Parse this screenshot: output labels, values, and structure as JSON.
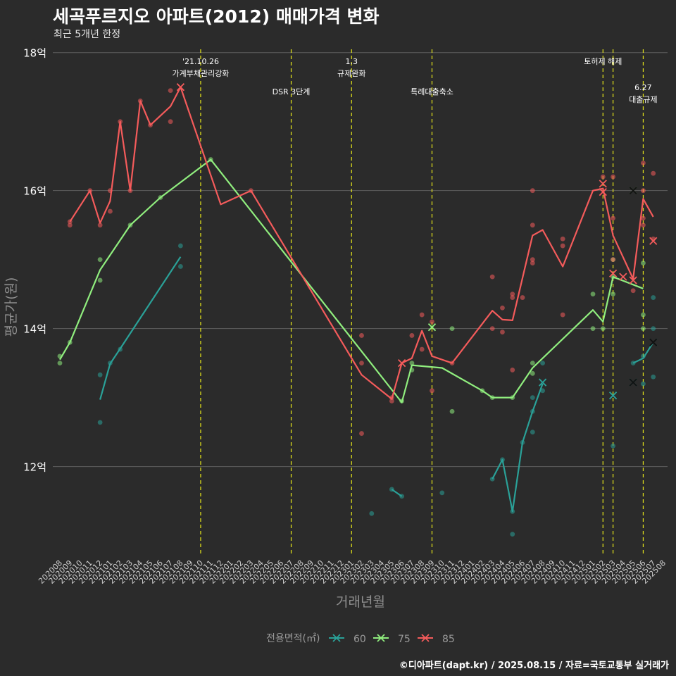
{
  "title": "세곡푸르지오 아파트(2012) 매매가격 변화",
  "subtitle": "최근 5개년 한정",
  "caption": "©디아파트(dapt.kr) / 2025.08.15 / 자료=국토교통부 실거래가",
  "colors": {
    "background": "#2b2b2b",
    "series_60": "#2aa198",
    "series_75": "#90ee7e",
    "series_85": "#f45b5b",
    "event_line": "#e8e81a"
  },
  "chart_data": {
    "type": "line",
    "xlabel": "거래년월",
    "ylabel": "평균가(원)",
    "ylim": [
      10.7,
      18.15
    ],
    "yticks": [
      {
        "value": 12,
        "label": "12억"
      },
      {
        "value": 14,
        "label": "14억"
      },
      {
        "value": 16,
        "label": "16억"
      },
      {
        "value": 18,
        "label": "18억"
      }
    ],
    "categories": [
      "202008",
      "202009",
      "202010",
      "202011",
      "202012",
      "202101",
      "202102",
      "202103",
      "202104",
      "202105",
      "202106",
      "202107",
      "202108",
      "202109",
      "202110",
      "202111",
      "202112",
      "202201",
      "202202",
      "202203",
      "202204",
      "202205",
      "202206",
      "202207",
      "202208",
      "202209",
      "202210",
      "202211",
      "202212",
      "202301",
      "202302",
      "202303",
      "202304",
      "202305",
      "202306",
      "202307",
      "202308",
      "202309",
      "202310",
      "202311",
      "202312",
      "202401",
      "202402",
      "202403",
      "202404",
      "202405",
      "202406",
      "202407",
      "202408",
      "202409",
      "202410",
      "202411",
      "202412",
      "202501",
      "202502",
      "202503",
      "202504",
      "202505",
      "202506",
      "202507",
      "202508"
    ],
    "legend": {
      "title": "전용면적(㎡)",
      "position": "bottom"
    },
    "grid": true,
    "series": [
      {
        "name": "60",
        "color": "#2aa198",
        "line": [
          {
            "x": "202012",
            "y": 12.97
          },
          {
            "x": "202101",
            "y": 13.49
          },
          {
            "x": "202102",
            "y": 13.71
          },
          {
            "x": "202108",
            "y": 15.04
          }
        ],
        "line2": [
          {
            "x": "202305",
            "y": 11.67
          },
          {
            "x": "202306",
            "y": 11.57
          }
        ],
        "line3": [
          {
            "x": "202403",
            "y": 11.82
          },
          {
            "x": "202404",
            "y": 12.1
          },
          {
            "x": "202405",
            "y": 11.35
          },
          {
            "x": "202406",
            "y": 12.35
          },
          {
            "x": "202407",
            "y": 12.8
          },
          {
            "x": "202408",
            "y": 13.2
          }
        ],
        "line4": [
          {
            "x": "202505",
            "y": 13.5
          },
          {
            "x": "202506",
            "y": 13.57
          },
          {
            "x": "202507",
            "y": 13.8
          }
        ],
        "points": [
          {
            "x": "202012",
            "y": 13.33
          },
          {
            "x": "202012",
            "y": 12.64
          },
          {
            "x": "202101",
            "y": 13.5
          },
          {
            "x": "202102",
            "y": 13.7
          },
          {
            "x": "202108",
            "y": 15.2
          },
          {
            "x": "202108",
            "y": 14.9
          },
          {
            "x": "202303",
            "y": 11.32
          },
          {
            "x": "202305",
            "y": 11.67
          },
          {
            "x": "202306",
            "y": 11.57
          },
          {
            "x": "202310",
            "y": 11.62
          },
          {
            "x": "202403",
            "y": 11.82
          },
          {
            "x": "202404",
            "y": 12.1
          },
          {
            "x": "202405",
            "y": 11.35
          },
          {
            "x": "202405",
            "y": 11.02
          },
          {
            "x": "202406",
            "y": 12.35
          },
          {
            "x": "202407",
            "y": 12.8
          },
          {
            "x": "202407",
            "y": 13.0
          },
          {
            "x": "202407",
            "y": 12.5
          },
          {
            "x": "202408",
            "y": 13.5
          },
          {
            "x": "202408",
            "y": 13.1
          },
          {
            "x": "202503",
            "y": 12.3
          },
          {
            "x": "202505",
            "y": 13.5
          },
          {
            "x": "202506",
            "y": 13.2
          },
          {
            "x": "202506",
            "y": 13.6
          },
          {
            "x": "202507",
            "y": 14.45
          },
          {
            "x": "202507",
            "y": 14.0
          },
          {
            "x": "202507",
            "y": 13.3
          }
        ],
        "markers": [
          {
            "x": "202408",
            "y": 13.22
          },
          {
            "x": "202503",
            "y": 13.03
          },
          {
            "x": "202505",
            "y": 13.22
          },
          {
            "x": "202507",
            "y": 13.8
          }
        ]
      },
      {
        "name": "75",
        "color": "#90ee7e",
        "line": [
          {
            "x": "202008",
            "y": 13.55
          },
          {
            "x": "202009",
            "y": 13.8
          },
          {
            "x": "202012",
            "y": 14.85
          },
          {
            "x": "202103",
            "y": 15.5
          },
          {
            "x": "202106",
            "y": 15.9
          },
          {
            "x": "202111",
            "y": 16.45
          },
          {
            "x": "202306",
            "y": 12.93
          },
          {
            "x": "202307",
            "y": 13.47
          },
          {
            "x": "202310",
            "y": 13.43
          },
          {
            "x": "202402",
            "y": 13.1
          },
          {
            "x": "202403",
            "y": 13.0
          },
          {
            "x": "202405",
            "y": 13.0
          },
          {
            "x": "202407",
            "y": 13.43
          },
          {
            "x": "202501",
            "y": 14.27
          },
          {
            "x": "202502",
            "y": 14.1
          },
          {
            "x": "202503",
            "y": 14.75
          },
          {
            "x": "202506",
            "y": 14.58
          }
        ],
        "points": [
          {
            "x": "202008",
            "y": 13.6
          },
          {
            "x": "202008",
            "y": 13.5
          },
          {
            "x": "202009",
            "y": 13.8
          },
          {
            "x": "202012",
            "y": 15.0
          },
          {
            "x": "202012",
            "y": 14.7
          },
          {
            "x": "202103",
            "y": 15.5
          },
          {
            "x": "202106",
            "y": 15.9
          },
          {
            "x": "202111",
            "y": 16.45
          },
          {
            "x": "202306",
            "y": 12.95
          },
          {
            "x": "202307",
            "y": 13.5
          },
          {
            "x": "202307",
            "y": 13.4
          },
          {
            "x": "202311",
            "y": 14.0
          },
          {
            "x": "202311",
            "y": 12.8
          },
          {
            "x": "202402",
            "y": 13.1
          },
          {
            "x": "202403",
            "y": 13.0
          },
          {
            "x": "202405",
            "y": 13.0
          },
          {
            "x": "202407",
            "y": 13.5
          },
          {
            "x": "202407",
            "y": 13.35
          },
          {
            "x": "202501",
            "y": 14.5
          },
          {
            "x": "202501",
            "y": 14.0
          },
          {
            "x": "202502",
            "y": 14.0
          },
          {
            "x": "202503",
            "y": 14.75
          },
          {
            "x": "202503",
            "y": 14.5
          },
          {
            "x": "202503",
            "y": 15.0
          },
          {
            "x": "202506",
            "y": 14.95
          },
          {
            "x": "202506",
            "y": 14.2
          },
          {
            "x": "202506",
            "y": 14.0
          }
        ],
        "markers": [
          {
            "x": "202309",
            "y": 14.02
          },
          {
            "x": "202505",
            "y": 16.0
          }
        ]
      },
      {
        "name": "85",
        "color": "#f45b5b",
        "line": [
          {
            "x": "202009",
            "y": 15.55
          },
          {
            "x": "202011",
            "y": 16.0
          },
          {
            "x": "202012",
            "y": 15.53
          },
          {
            "x": "202101",
            "y": 15.85
          },
          {
            "x": "202102",
            "y": 17.0
          },
          {
            "x": "202103",
            "y": 16.0
          },
          {
            "x": "202104",
            "y": 17.3
          },
          {
            "x": "202105",
            "y": 16.95
          },
          {
            "x": "202107",
            "y": 17.22
          },
          {
            "x": "202108",
            "y": 17.5
          },
          {
            "x": "202112",
            "y": 15.8
          },
          {
            "x": "202203",
            "y": 16.0
          },
          {
            "x": "202302",
            "y": 13.33
          },
          {
            "x": "202305",
            "y": 12.98
          },
          {
            "x": "202306",
            "y": 13.5
          },
          {
            "x": "202307",
            "y": 13.57
          },
          {
            "x": "202308",
            "y": 13.97
          },
          {
            "x": "202309",
            "y": 13.6
          },
          {
            "x": "202311",
            "y": 13.5
          },
          {
            "x": "202403",
            "y": 14.26
          },
          {
            "x": "202404",
            "y": 14.13
          },
          {
            "x": "202405",
            "y": 14.12
          },
          {
            "x": "202407",
            "y": 15.35
          },
          {
            "x": "202408",
            "y": 15.43
          },
          {
            "x": "202410",
            "y": 14.9
          },
          {
            "x": "202501",
            "y": 16.0
          },
          {
            "x": "202502",
            "y": 16.03
          },
          {
            "x": "202503",
            "y": 15.35
          },
          {
            "x": "202505",
            "y": 14.72
          },
          {
            "x": "202506",
            "y": 15.88
          },
          {
            "x": "202507",
            "y": 15.62
          }
        ],
        "points": [
          {
            "x": "202009",
            "y": 15.55
          },
          {
            "x": "202009",
            "y": 15.5
          },
          {
            "x": "202011",
            "y": 16.0
          },
          {
            "x": "202012",
            "y": 15.5
          },
          {
            "x": "202101",
            "y": 16.0
          },
          {
            "x": "202101",
            "y": 15.7
          },
          {
            "x": "202102",
            "y": 17.0
          },
          {
            "x": "202103",
            "y": 16.0
          },
          {
            "x": "202104",
            "y": 17.3
          },
          {
            "x": "202105",
            "y": 16.95
          },
          {
            "x": "202107",
            "y": 17.45
          },
          {
            "x": "202107",
            "y": 17.0
          },
          {
            "x": "202203",
            "y": 16.0
          },
          {
            "x": "202302",
            "y": 13.9
          },
          {
            "x": "202302",
            "y": 12.48
          },
          {
            "x": "202302",
            "y": 13.5
          },
          {
            "x": "202305",
            "y": 12.95
          },
          {
            "x": "202305",
            "y": 13.0
          },
          {
            "x": "202307",
            "y": 13.9
          },
          {
            "x": "202308",
            "y": 14.2
          },
          {
            "x": "202308",
            "y": 13.7
          },
          {
            "x": "202309",
            "y": 14.1
          },
          {
            "x": "202309",
            "y": 13.1
          },
          {
            "x": "202311",
            "y": 13.5
          },
          {
            "x": "202403",
            "y": 14.75
          },
          {
            "x": "202403",
            "y": 14.0
          },
          {
            "x": "202404",
            "y": 14.3
          },
          {
            "x": "202404",
            "y": 13.95
          },
          {
            "x": "202405",
            "y": 14.5
          },
          {
            "x": "202405",
            "y": 14.45
          },
          {
            "x": "202405",
            "y": 13.4
          },
          {
            "x": "202406",
            "y": 14.45
          },
          {
            "x": "202407",
            "y": 16.0
          },
          {
            "x": "202407",
            "y": 15.5
          },
          {
            "x": "202407",
            "y": 15.0
          },
          {
            "x": "202407",
            "y": 14.95
          },
          {
            "x": "202410",
            "y": 15.3
          },
          {
            "x": "202410",
            "y": 15.2
          },
          {
            "x": "202410",
            "y": 14.2
          },
          {
            "x": "202502",
            "y": 16.2
          },
          {
            "x": "202503",
            "y": 16.2
          },
          {
            "x": "202503",
            "y": 15.6
          },
          {
            "x": "202503",
            "y": 15.0
          },
          {
            "x": "202505",
            "y": 14.55
          },
          {
            "x": "202506",
            "y": 16.4
          },
          {
            "x": "202506",
            "y": 16.0
          },
          {
            "x": "202506",
            "y": 15.6
          },
          {
            "x": "202506",
            "y": 15.5
          },
          {
            "x": "202507",
            "y": 16.25
          },
          {
            "x": "202507",
            "y": 15.3
          }
        ],
        "markers": [
          {
            "x": "202108",
            "y": 17.5
          },
          {
            "x": "202306",
            "y": 13.5
          },
          {
            "x": "202502",
            "y": 16.1
          },
          {
            "x": "202502",
            "y": 15.98
          },
          {
            "x": "202503",
            "y": 14.8
          },
          {
            "x": "202504",
            "y": 14.75
          },
          {
            "x": "202505",
            "y": 14.7
          },
          {
            "x": "202507",
            "y": 15.27
          }
        ]
      }
    ],
    "black_markers": [
      {
        "x": "202505",
        "y": 16.0
      },
      {
        "x": "202505",
        "y": 13.22
      },
      {
        "x": "202507",
        "y": 13.8
      }
    ],
    "events": [
      {
        "x": "202110",
        "label_lines": [
          "'21.10.26",
          "가계부채관리강화"
        ],
        "level": 0
      },
      {
        "x": "202207",
        "label_lines": [
          "DSR 3단계"
        ],
        "level": 1
      },
      {
        "x": "202301",
        "label_lines": [
          "1.3",
          "규제완화"
        ],
        "level": 0
      },
      {
        "x": "202309",
        "label_lines": [
          "특례대출축소"
        ],
        "level": 1
      },
      {
        "x": "202502",
        "label_lines": [
          "토허제 해제"
        ],
        "level": 0
      },
      {
        "x": "202503",
        "label_lines": [],
        "level": 0
      },
      {
        "x": "202506",
        "label_lines": [
          "6.27",
          "대출규제"
        ],
        "level": 2
      }
    ]
  }
}
